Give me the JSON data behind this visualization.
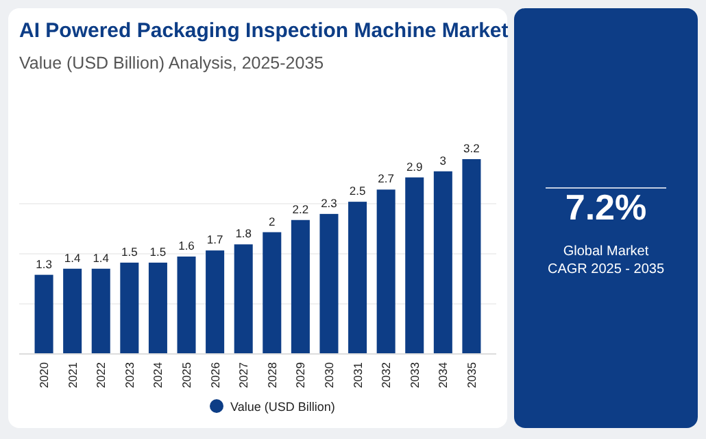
{
  "chart_data": {
    "type": "bar",
    "title": "AI Powered Packaging Inspection Machine Market",
    "subtitle": "Value (USD Billion) Analysis, 2025-2035",
    "categories": [
      "2020",
      "2021",
      "2022",
      "2023",
      "2024",
      "2025",
      "2026",
      "2027",
      "2028",
      "2029",
      "2030",
      "2031",
      "2032",
      "2033",
      "2034",
      "2035"
    ],
    "series": [
      {
        "name": "Value (USD Billion)",
        "color": "#0d3d86",
        "values": [
          1.3,
          1.4,
          1.4,
          1.5,
          1.5,
          1.6,
          1.7,
          1.8,
          2,
          2.2,
          2.3,
          2.5,
          2.7,
          2.9,
          3,
          3.2
        ]
      }
    ],
    "data_labels": true,
    "legend": "bottom",
    "tick_labels": "x",
    "annotations": [
      "7.2%",
      "Global Market",
      "CAGR 2025 - 2035"
    ]
  }
}
